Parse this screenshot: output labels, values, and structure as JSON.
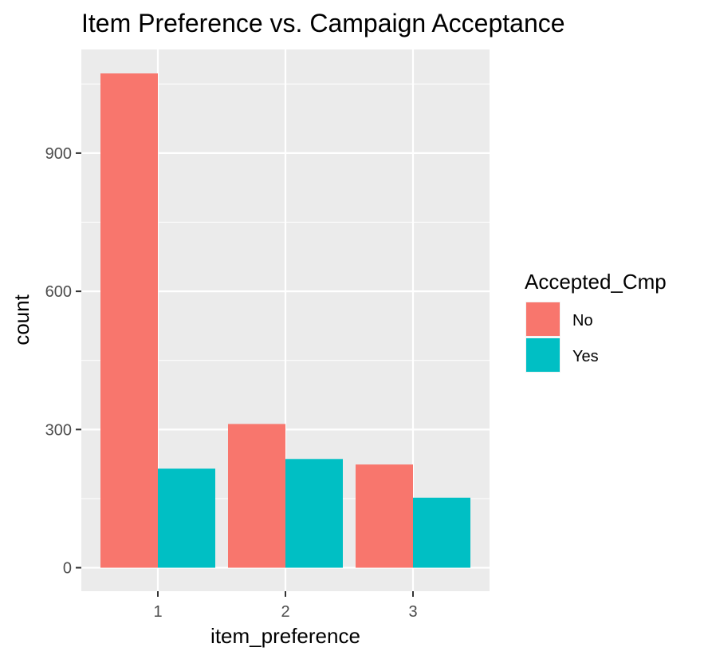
{
  "chart_data": {
    "type": "bar",
    "title": "Item Preference vs. Campaign Acceptance",
    "xlabel": "item_preference",
    "ylabel": "count",
    "categories": [
      "1",
      "2",
      "3"
    ],
    "series": [
      {
        "name": "No",
        "values": [
          1073,
          312,
          224
        ],
        "color": "#F8766D"
      },
      {
        "name": "Yes",
        "values": [
          215,
          236,
          152
        ],
        "color": "#00BFC4"
      }
    ],
    "ylim": [
      -51,
      1125
    ],
    "yticks": [
      0,
      300,
      600,
      900
    ],
    "grid": true,
    "legend": {
      "title": "Accepted_Cmp",
      "position": "right"
    },
    "panel_background": "#EBEBEB",
    "grid_color": "#FFFFFF"
  }
}
